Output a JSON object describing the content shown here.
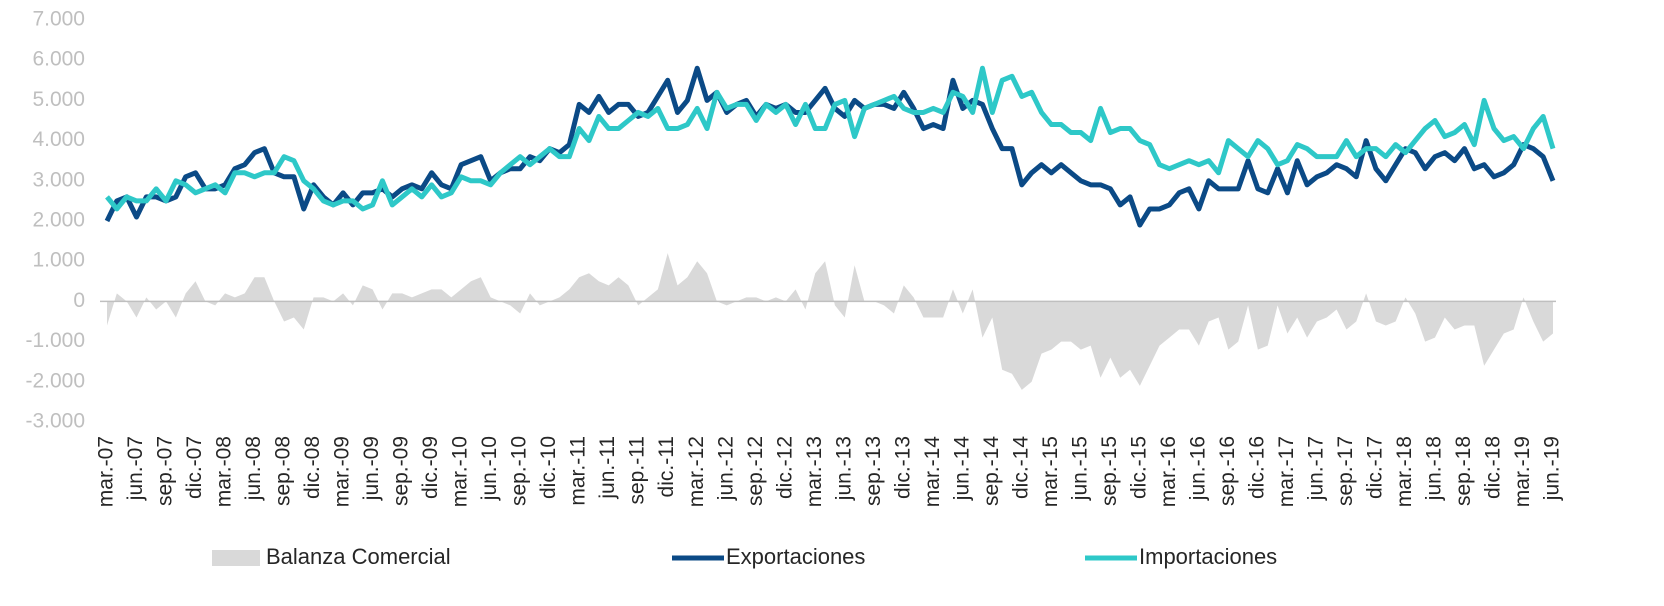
{
  "chart_data": {
    "type": "line",
    "categories": [
      "mar.-07",
      null,
      null,
      "jun.-07",
      null,
      null,
      "sep.-07",
      null,
      null,
      "dic.-07",
      null,
      null,
      "mar.-08",
      null,
      null,
      "jun.-08",
      null,
      null,
      "sep.-08",
      null,
      null,
      "dic.-08",
      null,
      null,
      "mar.-09",
      null,
      null,
      "jun.-09",
      null,
      null,
      "sep.-09",
      null,
      null,
      "dic.-09",
      null,
      null,
      "mar.-10",
      null,
      null,
      "jun.-10",
      null,
      null,
      "sep.-10",
      null,
      null,
      "dic.-10",
      null,
      null,
      "mar.-11",
      null,
      null,
      "jun.-11",
      null,
      null,
      "sep.-11",
      null,
      null,
      "dic.-11",
      null,
      null,
      "mar.-12",
      null,
      null,
      "jun.-12",
      null,
      null,
      "sep.-12",
      null,
      null,
      "dic.-12",
      null,
      null,
      "mar.-13",
      null,
      null,
      "jun.-13",
      null,
      null,
      "sep.-13",
      null,
      null,
      "dic.-13",
      null,
      null,
      "mar.-14",
      null,
      null,
      "jun.-14",
      null,
      null,
      "sep.-14",
      null,
      null,
      "dic.-14",
      null,
      null,
      "mar.-15",
      null,
      null,
      "jun.-15",
      null,
      null,
      "sep.-15",
      null,
      null,
      "dic.-15",
      null,
      null,
      "mar.-16",
      null,
      null,
      "jun.-16",
      null,
      null,
      "sep.-16",
      null,
      null,
      "dic.-16",
      null,
      null,
      "mar.-17",
      null,
      null,
      "jun.-17",
      null,
      null,
      "sep.-17",
      null,
      null,
      "dic.-17",
      null,
      null,
      "mar.-18",
      null,
      null,
      "jun.-18",
      null,
      null,
      "sep.-18",
      null,
      null,
      "dic.-18",
      null,
      null,
      "mar.-19",
      null,
      null,
      "jun.-19"
    ],
    "series": [
      {
        "name": "Balanza Comercial",
        "kind": "area",
        "color": "#d9d9d9",
        "values": [
          -600,
          200,
          0,
          -400,
          100,
          -200,
          0,
          -400,
          200,
          500,
          0,
          -100,
          200,
          100,
          200,
          600,
          600,
          0,
          -500,
          -400,
          -700,
          100,
          100,
          0,
          200,
          -100,
          400,
          300,
          -200,
          200,
          200,
          100,
          200,
          300,
          300,
          100,
          300,
          500,
          600,
          100,
          0,
          -100,
          -300,
          200,
          -100,
          0,
          100,
          300,
          600,
          700,
          500,
          400,
          600,
          400,
          -100,
          100,
          300,
          1200,
          400,
          600,
          1000,
          700,
          0,
          -100,
          0,
          100,
          100,
          0,
          100,
          0,
          300,
          -200,
          700,
          1000,
          -100,
          -400,
          900,
          0,
          0,
          -100,
          -300,
          400,
          100,
          -400,
          -400,
          -400,
          300,
          -300,
          300,
          -900,
          -400,
          -1700,
          -1800,
          -2200,
          -2000,
          -1300,
          -1200,
          -1000,
          -1000,
          -1200,
          -1100,
          -1900,
          -1400,
          -1900,
          -1700,
          -2100,
          -1600,
          -1100,
          -900,
          -700,
          -700,
          -1100,
          -500,
          -400,
          -1200,
          -1000,
          -100,
          -1200,
          -1100,
          -100,
          -800,
          -400,
          -900,
          -500,
          -400,
          -200,
          -700,
          -500,
          200,
          -500,
          -600,
          -500,
          100,
          -300,
          -1000,
          -900,
          -400,
          -700,
          -600,
          -600,
          -1600,
          -1200,
          -800,
          -700,
          100,
          -500,
          -1000,
          -800
        ]
      },
      {
        "name": "Exportaciones",
        "kind": "line",
        "color": "#0b4a86",
        "values": [
          2000,
          2500,
          2600,
          2100,
          2600,
          2600,
          2500,
          2600,
          3100,
          3200,
          2800,
          2800,
          2900,
          3300,
          3400,
          3700,
          3800,
          3200,
          3100,
          3100,
          2300,
          2900,
          2600,
          2400,
          2700,
          2400,
          2700,
          2700,
          2800,
          2600,
          2800,
          2900,
          2800,
          3200,
          2900,
          2800,
          3400,
          3500,
          3600,
          3000,
          3200,
          3300,
          3300,
          3600,
          3500,
          3800,
          3700,
          3900,
          4900,
          4700,
          5100,
          4700,
          4900,
          4900,
          4600,
          4700,
          5100,
          5500,
          4700,
          5000,
          5800,
          5000,
          5200,
          4700,
          4900,
          5000,
          4600,
          4900,
          4800,
          4900,
          4700,
          4700,
          5000,
          5300,
          4800,
          4600,
          5000,
          4800,
          4900,
          4900,
          4800,
          5200,
          4800,
          4300,
          4400,
          4300,
          5500,
          4800,
          5000,
          4900,
          4300,
          3800,
          3800,
          2900,
          3200,
          3400,
          3200,
          3400,
          3200,
          3000,
          2900,
          2900,
          2800,
          2400,
          2600,
          1900,
          2300,
          2300,
          2400,
          2700,
          2800,
          2300,
          3000,
          2800,
          2800,
          2800,
          3500,
          2800,
          2700,
          3300,
          2700,
          3500,
          2900,
          3100,
          3200,
          3400,
          3300,
          3100,
          4000,
          3300,
          3000,
          3400,
          3800,
          3700,
          3300,
          3600,
          3700,
          3500,
          3800,
          3300,
          3400,
          3100,
          3200,
          3400,
          3900,
          3800,
          3600,
          3000
        ]
      },
      {
        "name": "Importaciones",
        "kind": "line",
        "color": "#2ec8c8",
        "values": [
          2600,
          2300,
          2600,
          2500,
          2500,
          2800,
          2500,
          3000,
          2900,
          2700,
          2800,
          2900,
          2700,
          3200,
          3200,
          3100,
          3200,
          3200,
          3600,
          3500,
          3000,
          2800,
          2500,
          2400,
          2500,
          2500,
          2300,
          2400,
          3000,
          2400,
          2600,
          2800,
          2600,
          2900,
          2600,
          2700,
          3100,
          3000,
          3000,
          2900,
          3200,
          3400,
          3600,
          3400,
          3600,
          3800,
          3600,
          3600,
          4300,
          4000,
          4600,
          4300,
          4300,
          4500,
          4700,
          4600,
          4800,
          4300,
          4300,
          4400,
          4800,
          4300,
          5200,
          4800,
          4900,
          4900,
          4500,
          4900,
          4700,
          4900,
          4400,
          4900,
          4300,
          4300,
          4900,
          5000,
          4100,
          4800,
          4900,
          5000,
          5100,
          4800,
          4700,
          4700,
          4800,
          4700,
          5200,
          5100,
          4700,
          5800,
          4700,
          5500,
          5600,
          5100,
          5200,
          4700,
          4400,
          4400,
          4200,
          4200,
          4000,
          4800,
          4200,
          4300,
          4300,
          4000,
          3900,
          3400,
          3300,
          3400,
          3500,
          3400,
          3500,
          3200,
          4000,
          3800,
          3600,
          4000,
          3800,
          3400,
          3500,
          3900,
          3800,
          3600,
          3600,
          3600,
          4000,
          3600,
          3800,
          3800,
          3600,
          3900,
          3700,
          4000,
          4300,
          4500,
          4100,
          4200,
          4400,
          3900,
          5000,
          4300,
          4000,
          4100,
          3800,
          4300,
          4600,
          3800
        ]
      }
    ],
    "ylim": [
      -3000,
      7000
    ],
    "yticks": [
      {
        "value": -3000,
        "label": "-3.000"
      },
      {
        "value": -2000,
        "label": "-2.000"
      },
      {
        "value": -1000,
        "label": "-1.000"
      },
      0,
      {
        "value": 1000,
        "label": "1.000"
      },
      {
        "value": 2000,
        "label": "2.000"
      },
      {
        "value": 3000,
        "label": "3.000"
      },
      {
        "value": 4000,
        "label": "4.000"
      },
      {
        "value": 5000,
        "label": "5.000"
      },
      {
        "value": 6000,
        "label": "6.000"
      },
      {
        "value": 7000,
        "label": "7.000"
      }
    ],
    "grid": false,
    "legend": "bottom"
  }
}
